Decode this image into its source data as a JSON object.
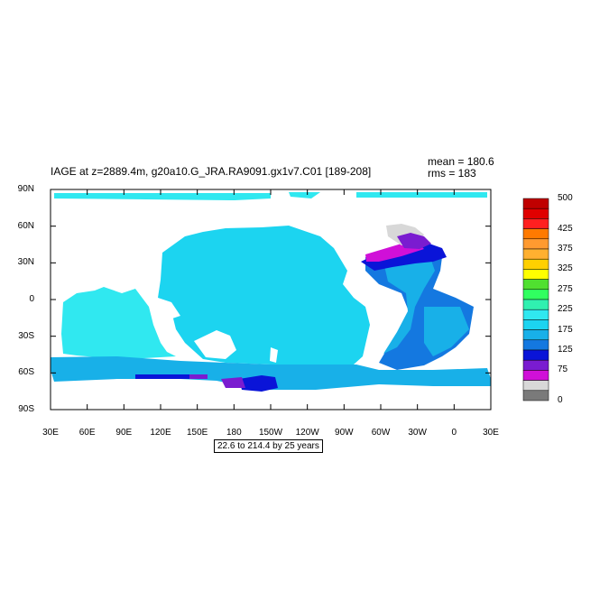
{
  "title": "IAGE at z=2889.4m, g20a10.G_JRA.RA9091.gx1v7.C01 [189-208]",
  "stats": {
    "mean": "mean = 180.6",
    "rms": "rms = 183"
  },
  "lat_labels": [
    "90N",
    "60N",
    "30N",
    "0",
    "30S",
    "60S",
    "90S"
  ],
  "lon_labels": [
    "30E",
    "60E",
    "90E",
    "120E",
    "150E",
    "180",
    "150W",
    "120W",
    "90W",
    "60W",
    "30W",
    "0",
    "30E"
  ],
  "range_note": "22.6 to 214.4 by 25 years",
  "colorbar": {
    "labels": [
      "500",
      "425",
      "375",
      "325",
      "275",
      "225",
      "175",
      "125",
      "75",
      "0"
    ],
    "colors": [
      "#c00000",
      "#e00000",
      "#ff2020",
      "#ff7a00",
      "#ff9a30",
      "#ffb030",
      "#ffd000",
      "#ffff00",
      "#50e030",
      "#30ff60",
      "#30f0b0",
      "#30e8f0",
      "#1cd4f0",
      "#18b0e8",
      "#1478e0",
      "#0a14d8",
      "#7a1cd0",
      "#d010d8",
      "#d8d8d8",
      "#7a7a7a"
    ]
  },
  "map_colors": {
    "water": "#ffffff",
    "deep_pacific": "#1cd4f0",
    "deep_cyan": "#30e8f0",
    "southern": "#18b0e8",
    "atlantic_mid": "#1478e0",
    "atlantic_young": "#0a14d8",
    "violet": "#7a1cd0",
    "magenta": "#d010d8",
    "young_grey": "#d8d8d8"
  }
}
